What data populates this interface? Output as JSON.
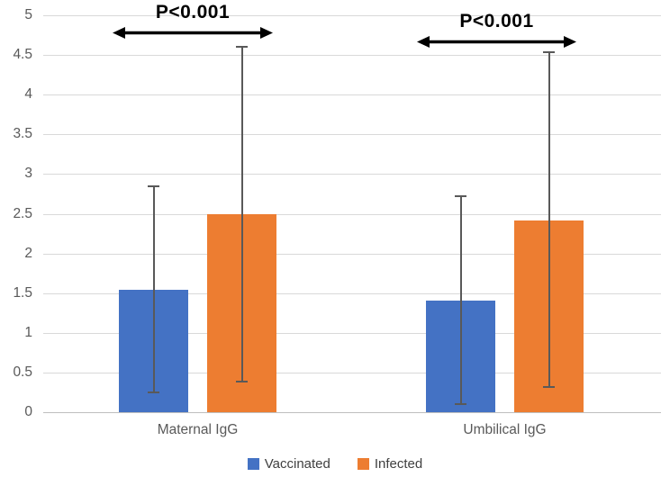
{
  "chart_data": {
    "type": "bar",
    "title": "",
    "xlabel": "",
    "ylabel": "",
    "categories": [
      "Maternal IgG",
      "Umbilical IgG"
    ],
    "series": [
      {
        "name": "Vaccinated",
        "color": "#4472C4",
        "values": [
          1.54,
          1.41
        ],
        "error_low": [
          0.25,
          0.1
        ],
        "error_high": [
          2.85,
          2.72
        ]
      },
      {
        "name": "Infected",
        "color": "#ED7D31",
        "values": [
          2.5,
          2.42
        ],
        "error_low": [
          0.39,
          0.32
        ],
        "error_high": [
          4.6,
          4.53
        ]
      }
    ],
    "ylim": [
      0,
      5
    ],
    "ytick_step": 0.5,
    "grid": true,
    "legend_position": "bottom",
    "annotations": [
      {
        "label": "P<0.001",
        "category": "Maternal IgG"
      },
      {
        "label": "P<0.001",
        "category": "Umbilical IgG"
      }
    ],
    "colors": {
      "error_bar": "#595959",
      "gridline": "#D9D9D9",
      "axis_text": "#595959",
      "annotation_text": "#000000"
    }
  }
}
